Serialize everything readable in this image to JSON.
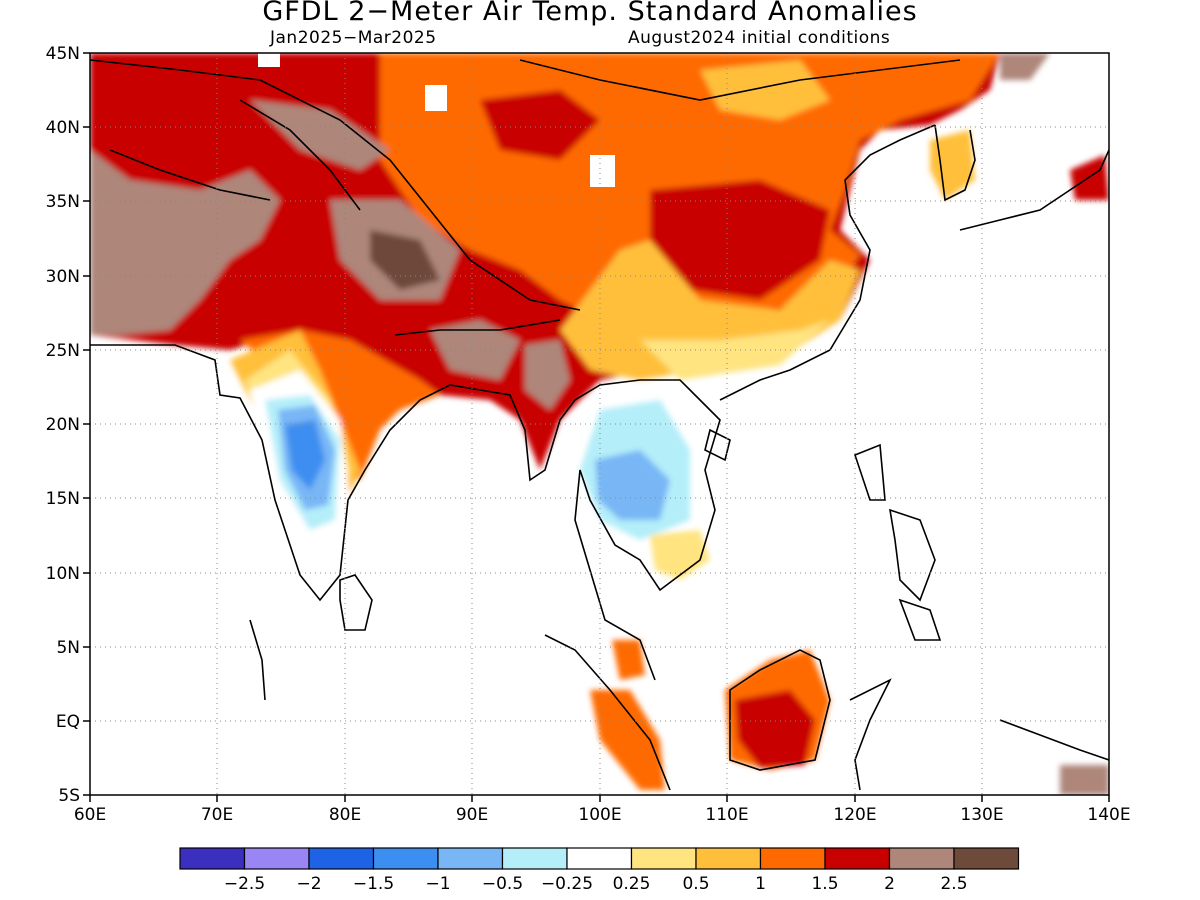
{
  "header": {
    "title": "GFDL 2−Meter Air Temp. Standard Anomalies",
    "period": "Jan2025−Mar2025",
    "init": "August2024 initial conditions"
  },
  "map": {
    "lon_range": [
      60,
      140
    ],
    "lat_range": [
      -5,
      45
    ],
    "lon_ticks": [
      "60E",
      "70E",
      "80E",
      "90E",
      "100E",
      "110E",
      "120E",
      "130E",
      "140E"
    ],
    "lat_ticks": [
      "45N",
      "40N",
      "35N",
      "30N",
      "25N",
      "20N",
      "15N",
      "10N",
      "5N",
      "EQ",
      "5S"
    ],
    "gridlines": "dotted"
  },
  "legend": {
    "bins": [
      {
        "color": "#3a2fbe"
      },
      {
        "color": "#9a85f4"
      },
      {
        "color": "#1e63e6"
      },
      {
        "color": "#3c8ef0"
      },
      {
        "color": "#78b6f6"
      },
      {
        "color": "#b4eef9"
      },
      {
        "color": "#ffffff"
      },
      {
        "color": "#ffe480"
      },
      {
        "color": "#ffbf3a"
      },
      {
        "color": "#ff6a00"
      },
      {
        "color": "#c80000"
      },
      {
        "color": "#ae867a"
      },
      {
        "color": "#6e4a3a"
      }
    ],
    "labels": [
      "−2.5",
      "−2",
      "−1.5",
      "−1",
      "−0.5",
      "−0.25",
      "0.25",
      "0.5",
      "1",
      "1.5",
      "2",
      "2.5"
    ]
  }
}
